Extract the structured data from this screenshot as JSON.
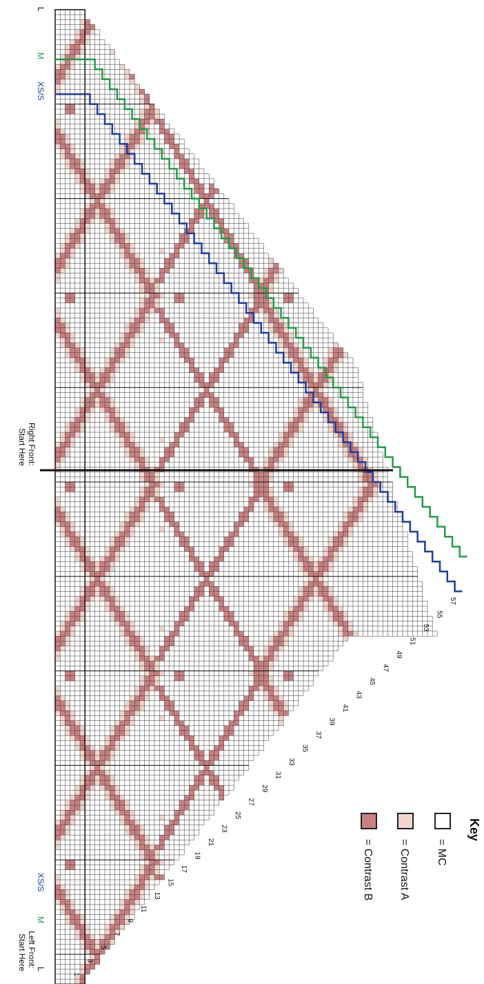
{
  "chart": {
    "size_markers": {
      "l_top": "L",
      "m_top": "M",
      "xs_top": "XS/S",
      "xs_bottom": "XS/S",
      "m_bottom": "M",
      "l_bottom": "L"
    },
    "start_labels": {
      "right_front": [
        "Right Front:",
        "Start Here"
      ],
      "left_front": [
        "Left Front:",
        "Start Here"
      ]
    },
    "row_numbers": [
      "1",
      "3",
      "5",
      "7",
      "9",
      "11",
      "13",
      "15",
      "17",
      "19",
      "21",
      "23",
      "25",
      "27",
      "29",
      "31",
      "33",
      "35",
      "37",
      "39",
      "41",
      "43",
      "45",
      "47",
      "49",
      "51",
      "53",
      "55",
      "57"
    ],
    "colors": {
      "mc": "#ffffff",
      "contrast_a": "#f0d6cd",
      "contrast_b": "#c98080",
      "grid": "#333333",
      "line_xs": "#1c3c9c",
      "line_m": "#1f9c46",
      "line_l": "#111111"
    },
    "key": {
      "title": "Key",
      "items": [
        {
          "label": "= MC",
          "color": "#ffffff"
        },
        {
          "label": "= Contrast A",
          "color": "#f0d6cd"
        },
        {
          "label": "= Contrast B",
          "color": "#c98080"
        }
      ]
    }
  }
}
